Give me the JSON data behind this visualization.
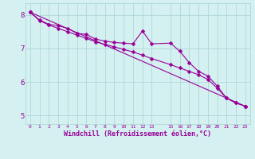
{
  "xlabel": "Windchill (Refroidissement éolien,°C)",
  "background_color": "#d4f0f0",
  "line_color": "#990099",
  "markersize": 2.5,
  "linewidth": 0.8,
  "xlim": [
    -0.5,
    23.5
  ],
  "ylim": [
    4.75,
    8.35
  ],
  "yticks": [
    5,
    6,
    7,
    8
  ],
  "grid_color": "#b0d8d8",
  "series1": [
    [
      0,
      8.08
    ],
    [
      1,
      7.85
    ],
    [
      2,
      7.72
    ],
    [
      3,
      7.68
    ],
    [
      4,
      7.6
    ],
    [
      5,
      7.45
    ],
    [
      6,
      7.42
    ],
    [
      7,
      7.28
    ],
    [
      8,
      7.22
    ],
    [
      9,
      7.18
    ],
    [
      10,
      7.16
    ],
    [
      11,
      7.14
    ],
    [
      12,
      7.52
    ],
    [
      13,
      7.14
    ],
    [
      15,
      7.16
    ],
    [
      16,
      6.92
    ],
    [
      17,
      6.58
    ],
    [
      18,
      6.32
    ],
    [
      19,
      6.18
    ],
    [
      20,
      5.88
    ],
    [
      21,
      5.52
    ],
    [
      22,
      5.38
    ],
    [
      23,
      5.28
    ]
  ],
  "series2": [
    [
      0,
      8.08
    ],
    [
      1,
      7.83
    ],
    [
      2,
      7.7
    ],
    [
      3,
      7.6
    ],
    [
      4,
      7.5
    ],
    [
      5,
      7.4
    ],
    [
      6,
      7.3
    ],
    [
      7,
      7.2
    ],
    [
      8,
      7.12
    ],
    [
      9,
      7.05
    ],
    [
      10,
      6.97
    ],
    [
      11,
      6.9
    ],
    [
      12,
      6.8
    ],
    [
      13,
      6.7
    ],
    [
      15,
      6.52
    ],
    [
      16,
      6.42
    ],
    [
      17,
      6.32
    ],
    [
      18,
      6.22
    ],
    [
      19,
      6.08
    ],
    [
      20,
      5.82
    ],
    [
      21,
      5.52
    ],
    [
      22,
      5.38
    ],
    [
      23,
      5.28
    ]
  ],
  "series3": [
    [
      0,
      8.08
    ],
    [
      23,
      5.28
    ]
  ]
}
